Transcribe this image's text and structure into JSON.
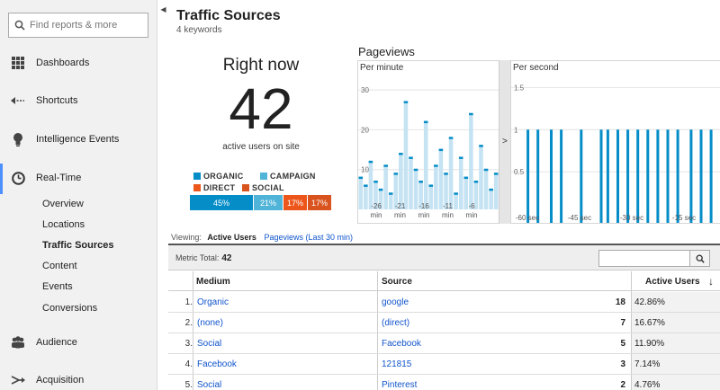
{
  "sidebar": {
    "search_placeholder": "Find reports & more",
    "items": [
      {
        "label": "Dashboards"
      },
      {
        "label": "Shortcuts"
      },
      {
        "label": "Intelligence Events"
      },
      {
        "label": "Real-Time"
      },
      {
        "label": "Audience"
      },
      {
        "label": "Acquisition"
      }
    ],
    "realtime_subitems": [
      "Overview",
      "Locations",
      "Traffic Sources",
      "Content",
      "Events",
      "Conversions"
    ],
    "active_subitem": "Traffic Sources"
  },
  "header": {
    "title": "Traffic Sources",
    "subtitle": "4 keywords"
  },
  "right_now": {
    "label": "Right now",
    "value": "42",
    "sub": "active users on site",
    "legend": [
      {
        "label": "ORGANIC",
        "color": "#058dc7"
      },
      {
        "label": "CAMPAIGN",
        "color": "#50b4d8"
      },
      {
        "label": "DIRECT",
        "color": "#ed561b"
      },
      {
        "label": "SOCIAL",
        "color": "#d9531e"
      }
    ],
    "share": [
      {
        "label": "45%",
        "value": 45,
        "color": "#058dc7"
      },
      {
        "label": "21%",
        "value": 21,
        "color": "#50b4d8"
      },
      {
        "label": "17%",
        "value": 17,
        "color": "#ed561b"
      },
      {
        "label": "17%",
        "value": 17,
        "color": "#d9531e"
      }
    ]
  },
  "pageviews": {
    "title": "Pageviews",
    "per_minute_label": "Per minute",
    "per_second_label": "Per second",
    "expand_glyph": ">",
    "per_minute": {
      "y_ticks": [
        "30",
        "20",
        "10"
      ],
      "x_ticks": [
        "-26\nmin",
        "-21\nmin",
        "-16\nmin",
        "-11\nmin",
        "-6\nmin"
      ],
      "values": [
        8,
        6,
        12,
        7,
        5,
        11,
        4,
        9,
        14,
        27,
        13,
        10,
        7,
        22,
        6,
        11,
        15,
        9,
        18,
        4,
        13,
        8,
        24,
        7,
        16,
        10,
        5,
        9
      ]
    },
    "per_second": {
      "y_ticks": [
        "1.5",
        "1",
        "0.5"
      ],
      "x_ticks": [
        "-60 sec",
        "-45 sec",
        "-30 sec",
        "-15 sec"
      ],
      "spikes": [
        -57,
        -54,
        -50,
        -47,
        -41,
        -35,
        -33,
        -30,
        -27,
        -24,
        -21,
        -18,
        -15,
        -12,
        -8,
        -5,
        -2
      ]
    }
  },
  "viewing": {
    "label": "Viewing:",
    "active": "Active Users",
    "alt": "Pageviews (Last 30 min)"
  },
  "table": {
    "metric_total_label": "Metric Total:",
    "metric_total_value": "42",
    "columns": {
      "medium": "Medium",
      "source": "Source",
      "active_users": "Active Users",
      "sort_glyph": "↓"
    },
    "rows": [
      {
        "idx": "1.",
        "medium": "Organic",
        "source": "google",
        "users": "18",
        "pct": "42.86%"
      },
      {
        "idx": "2.",
        "medium": "(none)",
        "source": "(direct)",
        "users": "7",
        "pct": "16.67%"
      },
      {
        "idx": "3.",
        "medium": "Social",
        "source": "Facebook",
        "users": "5",
        "pct": "11.90%"
      },
      {
        "idx": "4.",
        "medium": "Facebook",
        "source": "121815",
        "users": "3",
        "pct": "7.14%"
      },
      {
        "idx": "5.",
        "medium": "Social",
        "source": "Pinterest",
        "users": "2",
        "pct": "4.76%"
      }
    ]
  },
  "colors": {
    "accent": "#058dc7",
    "light": "#c5e3f3",
    "link": "#1155cc"
  }
}
